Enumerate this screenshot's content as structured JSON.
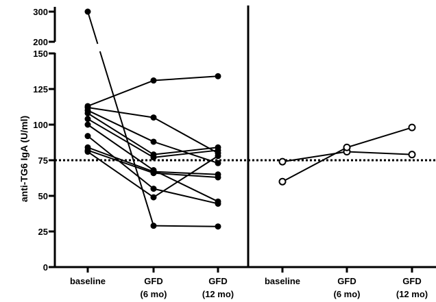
{
  "chart_data": {
    "type": "line",
    "ylabel": "anti-TG6 IgA (U/ml)",
    "y_axis": {
      "lower_segment": {
        "range": [
          0,
          150
        ],
        "ticks": [
          0,
          25,
          50,
          75,
          100,
          125,
          150
        ]
      },
      "upper_segment": {
        "range": [
          200,
          300
        ],
        "ticks": [
          200,
          300
        ]
      },
      "break_between": [
        150,
        200
      ]
    },
    "reference_line": {
      "value": 75,
      "style": "dotted"
    },
    "panels": [
      {
        "categories": [
          {
            "line1": "baseline",
            "line2": ""
          },
          {
            "line1": "GFD",
            "line2": "(6 mo)"
          },
          {
            "line1": "GFD",
            "line2": "(12 mo)"
          }
        ],
        "marker": "filled-circle",
        "series": [
          {
            "values": [
              300,
              29,
              28.5
            ]
          },
          {
            "values": [
              113,
              131,
              134
            ]
          },
          {
            "values": [
              112,
              105,
              80
            ]
          },
          {
            "values": [
              110,
              88,
              73
            ]
          },
          {
            "values": [
              108,
              79,
              84
            ]
          },
          {
            "values": [
              104,
              77,
              82
            ]
          },
          {
            "values": [
              100,
              68,
              46
            ]
          },
          {
            "values": [
              92,
              55,
              44.5
            ]
          },
          {
            "values": [
              84,
              67,
              65
            ]
          },
          {
            "values": [
              82,
              66,
              63
            ]
          },
          {
            "values": [
              81,
              49,
              78
            ]
          }
        ]
      },
      {
        "categories": [
          {
            "line1": "baseline",
            "line2": ""
          },
          {
            "line1": "GFD",
            "line2": "(6 mo)"
          },
          {
            "line1": "GFD",
            "line2": "(12 mo)"
          }
        ],
        "marker": "open-circle",
        "series": [
          {
            "values": [
              74,
              81,
              79
            ]
          },
          {
            "values": [
              60,
              84,
              98
            ]
          }
        ]
      }
    ]
  }
}
